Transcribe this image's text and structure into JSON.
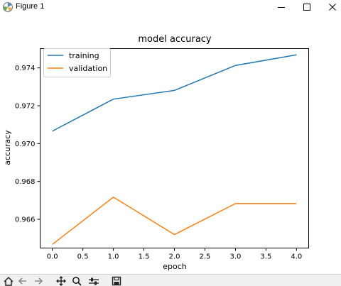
{
  "window": {
    "title": "Figure 1",
    "app_icon": "matplotlib-logo-icon",
    "controls": [
      "minimize-icon",
      "maximize-icon",
      "close-icon"
    ]
  },
  "toolbar": {
    "tools": [
      "home-icon",
      "back-icon",
      "forward-icon",
      "pan-icon",
      "zoom-icon",
      "configure-subplots-icon",
      "save-icon"
    ]
  },
  "chart_data": {
    "type": "line",
    "title": "model accuracy",
    "xlabel": "epoch",
    "ylabel": "accuracy",
    "x": [
      0,
      1,
      2,
      3,
      4
    ],
    "xlim": [
      -0.2,
      4.2
    ],
    "ylim": [
      0.96448,
      0.97502
    ],
    "xticks": [
      0.0,
      0.5,
      1.0,
      1.5,
      2.0,
      2.5,
      3.0,
      3.5,
      4.0
    ],
    "xtick_labels": [
      "0.0",
      "0.5",
      "1.0",
      "1.5",
      "2.0",
      "2.5",
      "3.0",
      "3.5",
      "4.0"
    ],
    "yticks": [
      0.966,
      0.968,
      0.97,
      0.972,
      0.974
    ],
    "ytick_labels": [
      "0.966",
      "0.968",
      "0.970",
      "0.972",
      "0.974"
    ],
    "grid": false,
    "legend_position": "top-left",
    "series": [
      {
        "name": "training",
        "color": "#1f77b4",
        "values": [
          0.97066,
          0.97235,
          0.97281,
          0.97413,
          0.97469
        ]
      },
      {
        "name": "validation",
        "color": "#ff7f0e",
        "values": [
          0.96467,
          0.96717,
          0.96519,
          0.96683,
          0.96683
        ]
      }
    ]
  }
}
